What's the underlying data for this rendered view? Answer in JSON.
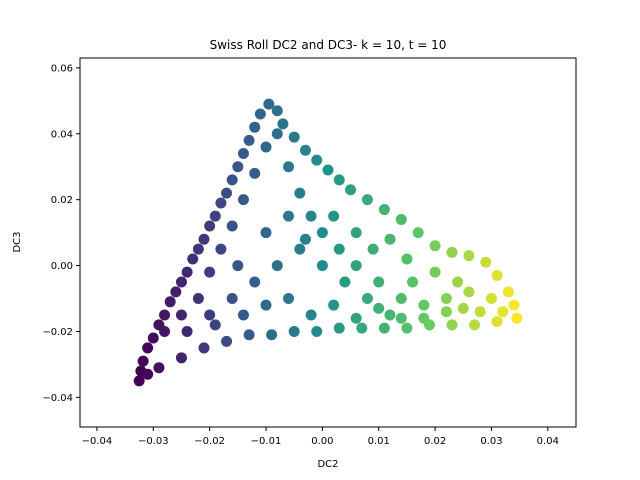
{
  "chart_data": {
    "type": "scatter",
    "title": "Swiss Roll DC2 and DC3- k = 10, t = 10",
    "xlabel": "DC2",
    "ylabel": "DC3",
    "xlim": [
      -0.043,
      0.045
    ],
    "ylim": [
      -0.049,
      0.063
    ],
    "xticks": [
      -0.04,
      -0.03,
      -0.02,
      -0.01,
      0.0,
      0.01,
      0.02,
      0.03,
      0.04
    ],
    "xtick_labels": [
      "−0.04",
      "−0.03",
      "−0.02",
      "−0.01",
      "0.00",
      "0.01",
      "0.02",
      "0.03",
      "0.04"
    ],
    "yticks": [
      -0.04,
      -0.02,
      0.0,
      0.02,
      0.04,
      0.06
    ],
    "ytick_labels": [
      "−0.04",
      "−0.02",
      "0.00",
      "0.02",
      "0.04",
      "0.06"
    ],
    "grid": false,
    "colormap": "viridis",
    "color_scale_colors": [
      "#440154",
      "#3b528b",
      "#21918c",
      "#5ec962",
      "#fde725"
    ],
    "shape_outline": {
      "description_vertices": [
        [
          -0.0325,
          -0.035
        ],
        [
          -0.0095,
          0.05
        ],
        [
          0.0,
          0.031
        ],
        [
          0.005,
          0.023
        ],
        [
          0.02,
          0.006
        ],
        [
          0.03,
          0.001
        ],
        [
          0.0345,
          -0.016
        ],
        [
          0.02,
          -0.0195
        ],
        [
          0.0,
          -0.0195
        ],
        [
          -0.012,
          -0.021
        ],
        [
          -0.022,
          -0.025
        ]
      ]
    },
    "series": [
      {
        "points": [
          [
            -0.0325,
            -0.035
          ],
          [
            -0.0322,
            -0.032
          ],
          [
            -0.0318,
            -0.029
          ],
          [
            -0.031,
            -0.025
          ],
          [
            -0.03,
            -0.022
          ],
          [
            -0.029,
            -0.018
          ],
          [
            -0.028,
            -0.015
          ],
          [
            -0.027,
            -0.011
          ],
          [
            -0.026,
            -0.008
          ],
          [
            -0.025,
            -0.005
          ],
          [
            -0.024,
            -0.002
          ],
          [
            -0.023,
            0.002
          ],
          [
            -0.022,
            0.005
          ],
          [
            -0.021,
            0.008
          ],
          [
            -0.02,
            0.012
          ],
          [
            -0.019,
            0.015
          ],
          [
            -0.018,
            0.019
          ],
          [
            -0.017,
            0.022
          ],
          [
            -0.016,
            0.026
          ],
          [
            -0.015,
            0.03
          ],
          [
            -0.014,
            0.034
          ],
          [
            -0.013,
            0.038
          ],
          [
            -0.012,
            0.042
          ],
          [
            -0.011,
            0.046
          ],
          [
            -0.0095,
            0.049
          ],
          [
            -0.008,
            0.047
          ],
          [
            -0.007,
            0.043
          ],
          [
            -0.005,
            0.039
          ],
          [
            -0.003,
            0.035
          ],
          [
            -0.001,
            0.032
          ],
          [
            0.001,
            0.029
          ],
          [
            0.003,
            0.026
          ],
          [
            0.005,
            0.023
          ],
          [
            0.008,
            0.02
          ],
          [
            0.011,
            0.017
          ],
          [
            0.014,
            0.014
          ],
          [
            0.017,
            0.01
          ],
          [
            0.02,
            0.006
          ],
          [
            0.023,
            0.004
          ],
          [
            0.026,
            0.003
          ],
          [
            0.029,
            0.001
          ],
          [
            0.031,
            -0.003
          ],
          [
            0.033,
            -0.008
          ],
          [
            0.034,
            -0.012
          ],
          [
            0.0345,
            -0.016
          ],
          [
            0.031,
            -0.017
          ],
          [
            0.027,
            -0.018
          ],
          [
            0.023,
            -0.018
          ],
          [
            0.019,
            -0.018
          ],
          [
            0.015,
            -0.019
          ],
          [
            0.011,
            -0.019
          ],
          [
            0.007,
            -0.019
          ],
          [
            0.003,
            -0.019
          ],
          [
            -0.001,
            -0.02
          ],
          [
            -0.005,
            -0.02
          ],
          [
            -0.009,
            -0.021
          ],
          [
            -0.013,
            -0.021
          ],
          [
            -0.017,
            -0.023
          ],
          [
            -0.021,
            -0.025
          ],
          [
            -0.025,
            -0.028
          ],
          [
            -0.029,
            -0.031
          ],
          [
            -0.031,
            -0.033
          ],
          [
            -0.028,
            -0.02
          ],
          [
            -0.025,
            -0.015
          ],
          [
            -0.022,
            -0.01
          ],
          [
            -0.02,
            -0.002
          ],
          [
            -0.018,
            0.005
          ],
          [
            -0.016,
            0.012
          ],
          [
            -0.014,
            0.02
          ],
          [
            -0.012,
            0.028
          ],
          [
            -0.01,
            0.036
          ],
          [
            -0.008,
            0.04
          ],
          [
            -0.006,
            0.03
          ],
          [
            -0.004,
            0.022
          ],
          [
            -0.002,
            0.015
          ],
          [
            0.0,
            0.01
          ],
          [
            0.003,
            0.005
          ],
          [
            0.006,
            0.0
          ],
          [
            0.01,
            -0.005
          ],
          [
            0.014,
            -0.01
          ],
          [
            0.018,
            -0.012
          ],
          [
            0.022,
            -0.01
          ],
          [
            0.026,
            -0.008
          ],
          [
            0.03,
            -0.01
          ],
          [
            -0.024,
            -0.02
          ],
          [
            -0.02,
            -0.015
          ],
          [
            -0.016,
            -0.01
          ],
          [
            -0.012,
            -0.005
          ],
          [
            -0.008,
            0.0
          ],
          [
            -0.004,
            0.005
          ],
          [
            0.0,
            0.0
          ],
          [
            0.004,
            -0.005
          ],
          [
            0.008,
            -0.01
          ],
          [
            0.012,
            -0.015
          ],
          [
            0.016,
            -0.005
          ],
          [
            0.02,
            -0.002
          ],
          [
            0.024,
            -0.005
          ],
          [
            0.028,
            -0.014
          ],
          [
            0.032,
            -0.014
          ],
          [
            0.025,
            -0.013
          ],
          [
            -0.015,
            0.0
          ],
          [
            -0.01,
            0.01
          ],
          [
            -0.006,
            0.015
          ],
          [
            -0.003,
            0.008
          ],
          [
            0.002,
            0.015
          ],
          [
            0.006,
            0.01
          ],
          [
            0.009,
            0.005
          ],
          [
            0.012,
            0.008
          ],
          [
            0.015,
            0.002
          ],
          [
            -0.019,
            -0.018
          ],
          [
            -0.014,
            -0.015
          ],
          [
            -0.01,
            -0.012
          ],
          [
            -0.006,
            -0.01
          ],
          [
            -0.002,
            -0.015
          ],
          [
            0.002,
            -0.012
          ],
          [
            0.006,
            -0.016
          ],
          [
            0.01,
            -0.013
          ],
          [
            0.014,
            -0.016
          ],
          [
            0.018,
            -0.016
          ],
          [
            0.022,
            -0.014
          ]
        ]
      }
    ]
  }
}
